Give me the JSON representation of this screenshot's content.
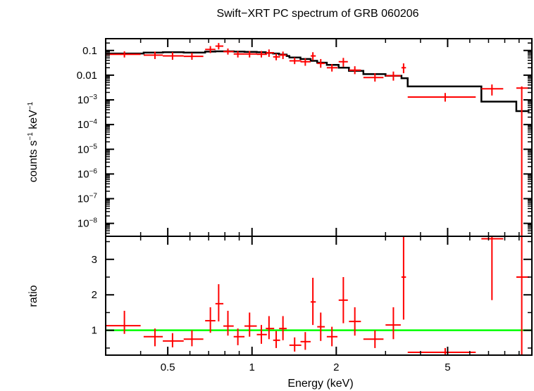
{
  "chart_data": {
    "type": "scatter",
    "title": "Swift−XRT PC spectrum of GRB 060206",
    "xlabel": "Energy (keV)",
    "xscale": "log",
    "xlim": [
      0.3,
      10
    ],
    "x_ticks": [
      {
        "value": 0.5,
        "label": "0.5"
      },
      {
        "value": 1,
        "label": "1"
      },
      {
        "value": 2,
        "label": "2"
      },
      {
        "value": 5,
        "label": "5"
      }
    ],
    "panels": [
      {
        "name": "spectrum",
        "ylabel": {
          "base": "counts s",
          "exp1": "−1",
          "mid": " keV",
          "exp2": "−1"
        },
        "yscale": "log",
        "ylim": [
          3e-09,
          0.3
        ],
        "y_ticks": [
          {
            "value": 0.1,
            "label": "0.1"
          },
          {
            "value": 0.01,
            "label": "0.01"
          },
          {
            "value": 0.001,
            "base": "10",
            "exp": "−3"
          },
          {
            "value": 0.0001,
            "base": "10",
            "exp": "−4"
          },
          {
            "value": 1e-05,
            "base": "10",
            "exp": "−5"
          },
          {
            "value": 1e-06,
            "base": "10",
            "exp": "−6"
          },
          {
            "value": 1e-07,
            "base": "10",
            "exp": "−7"
          },
          {
            "value": 1e-08,
            "base": "10",
            "exp": "−8"
          }
        ],
        "series": [
          {
            "name": "data",
            "color": "#ff0000",
            "points": [
              {
                "x": 0.35,
                "xlo": 0.3,
                "xhi": 0.4,
                "y": 0.07,
                "ylo": 0.052,
                "yhi": 0.092
              },
              {
                "x": 0.45,
                "xlo": 0.41,
                "xhi": 0.48,
                "y": 0.065,
                "ylo": 0.045,
                "yhi": 0.09
              },
              {
                "x": 0.52,
                "xlo": 0.48,
                "xhi": 0.57,
                "y": 0.06,
                "ylo": 0.042,
                "yhi": 0.085
              },
              {
                "x": 0.61,
                "xlo": 0.57,
                "xhi": 0.67,
                "y": 0.058,
                "ylo": 0.042,
                "yhi": 0.08
              },
              {
                "x": 0.71,
                "xlo": 0.68,
                "xhi": 0.74,
                "y": 0.11,
                "ylo": 0.078,
                "yhi": 0.15
              },
              {
                "x": 0.76,
                "xlo": 0.74,
                "xhi": 0.79,
                "y": 0.15,
                "ylo": 0.11,
                "yhi": 0.2
              },
              {
                "x": 0.82,
                "xlo": 0.79,
                "xhi": 0.86,
                "y": 0.09,
                "ylo": 0.068,
                "yhi": 0.12
              },
              {
                "x": 0.89,
                "xlo": 0.86,
                "xhi": 0.94,
                "y": 0.072,
                "ylo": 0.052,
                "yhi": 0.095
              },
              {
                "x": 0.98,
                "xlo": 0.94,
                "xhi": 1.04,
                "y": 0.072,
                "ylo": 0.052,
                "yhi": 0.095
              },
              {
                "x": 1.08,
                "xlo": 1.04,
                "xhi": 1.13,
                "y": 0.07,
                "ylo": 0.052,
                "yhi": 0.095
              },
              {
                "x": 1.15,
                "xlo": 1.12,
                "xhi": 1.2,
                "y": 0.08,
                "ylo": 0.055,
                "yhi": 0.11
              },
              {
                "x": 1.22,
                "xlo": 1.19,
                "xhi": 1.26,
                "y": 0.055,
                "ylo": 0.04,
                "yhi": 0.075
              },
              {
                "x": 1.29,
                "xlo": 1.25,
                "xhi": 1.33,
                "y": 0.065,
                "ylo": 0.045,
                "yhi": 0.09
              },
              {
                "x": 1.42,
                "xlo": 1.36,
                "xhi": 1.5,
                "y": 0.038,
                "ylo": 0.028,
                "yhi": 0.052
              },
              {
                "x": 1.55,
                "xlo": 1.49,
                "xhi": 1.62,
                "y": 0.035,
                "ylo": 0.024,
                "yhi": 0.048
              },
              {
                "x": 1.65,
                "xlo": 1.62,
                "xhi": 1.69,
                "y": 0.06,
                "ylo": 0.04,
                "yhi": 0.085
              },
              {
                "x": 1.76,
                "xlo": 1.71,
                "xhi": 1.82,
                "y": 0.03,
                "ylo": 0.02,
                "yhi": 0.045
              },
              {
                "x": 1.93,
                "xlo": 1.85,
                "xhi": 2.02,
                "y": 0.02,
                "ylo": 0.014,
                "yhi": 0.028
              },
              {
                "x": 2.12,
                "xlo": 2.04,
                "xhi": 2.2,
                "y": 0.035,
                "ylo": 0.022,
                "yhi": 0.05
              },
              {
                "x": 2.33,
                "xlo": 2.22,
                "xhi": 2.45,
                "y": 0.016,
                "ylo": 0.011,
                "yhi": 0.023
              },
              {
                "x": 2.75,
                "xlo": 2.5,
                "xhi": 2.95,
                "y": 0.008,
                "ylo": 0.0055,
                "yhi": 0.012
              },
              {
                "x": 3.2,
                "xlo": 3.0,
                "xhi": 3.4,
                "y": 0.0095,
                "ylo": 0.006,
                "yhi": 0.014
              },
              {
                "x": 3.48,
                "xlo": 3.42,
                "xhi": 3.55,
                "y": 0.02,
                "ylo": 0.012,
                "yhi": 0.03
              },
              {
                "x": 4.9,
                "xlo": 3.6,
                "xhi": 6.3,
                "y": 0.0013,
                "ylo": 0.00085,
                "yhi": 0.0019
              },
              {
                "x": 7.2,
                "xlo": 6.6,
                "xhi": 7.9,
                "y": 0.0028,
                "ylo": 0.0015,
                "yhi": 0.0042
              },
              {
                "x": 9.2,
                "xlo": 8.8,
                "xhi": 9.8,
                "y": 0.003,
                "ylo": 3e-09,
                "yhi": 0.0035
              }
            ]
          },
          {
            "name": "model",
            "color": "#000000",
            "step_edges": [
              0.3,
              0.41,
              0.48,
              0.57,
              0.68,
              0.74,
              0.79,
              0.86,
              0.94,
              1.04,
              1.12,
              1.19,
              1.25,
              1.33,
              1.36,
              1.49,
              1.62,
              1.71,
              1.85,
              2.04,
              2.22,
              2.5,
              3.0,
              3.42,
              3.6,
              6.6,
              8.8,
              9.8
            ],
            "step_values": [
              0.075,
              0.082,
              0.085,
              0.082,
              0.09,
              0.092,
              0.092,
              0.09,
              0.088,
              0.085,
              0.08,
              0.075,
              0.068,
              0.06,
              0.052,
              0.045,
              0.038,
              0.032,
              0.026,
              0.02,
              0.015,
              0.011,
              0.0095,
              0.0075,
              0.0035,
              0.00085,
              0.00035
            ]
          }
        ]
      },
      {
        "name": "ratio",
        "ylabel": "ratio",
        "yscale": "linear",
        "ylim": [
          0.3,
          3.65
        ],
        "y_ticks": [
          {
            "value": 1,
            "label": "1"
          },
          {
            "value": 2,
            "label": "2"
          },
          {
            "value": 3,
            "label": "3"
          }
        ],
        "reference_line": {
          "y": 1,
          "color": "#00ff00"
        },
        "series": [
          {
            "name": "ratio",
            "color": "#ff0000",
            "points": [
              {
                "x": 0.35,
                "xlo": 0.3,
                "xhi": 0.4,
                "y": 1.13,
                "ylo": 0.9,
                "yhi": 1.55
              },
              {
                "x": 0.45,
                "xlo": 0.41,
                "xhi": 0.48,
                "y": 0.82,
                "ylo": 0.55,
                "yhi": 1.05
              },
              {
                "x": 0.52,
                "xlo": 0.48,
                "xhi": 0.57,
                "y": 0.7,
                "ylo": 0.52,
                "yhi": 0.92
              },
              {
                "x": 0.61,
                "xlo": 0.57,
                "xhi": 0.67,
                "y": 0.75,
                "ylo": 0.55,
                "yhi": 1.0
              },
              {
                "x": 0.71,
                "xlo": 0.68,
                "xhi": 0.74,
                "y": 1.27,
                "ylo": 0.93,
                "yhi": 1.65
              },
              {
                "x": 0.76,
                "xlo": 0.74,
                "xhi": 0.79,
                "y": 1.75,
                "ylo": 1.25,
                "yhi": 2.3
              },
              {
                "x": 0.82,
                "xlo": 0.79,
                "xhi": 0.86,
                "y": 1.12,
                "ylo": 0.85,
                "yhi": 1.55
              },
              {
                "x": 0.89,
                "xlo": 0.86,
                "xhi": 0.94,
                "y": 0.82,
                "ylo": 0.58,
                "yhi": 1.05
              },
              {
                "x": 0.98,
                "xlo": 0.94,
                "xhi": 1.04,
                "y": 1.12,
                "ylo": 0.82,
                "yhi": 1.5
              },
              {
                "x": 1.08,
                "xlo": 1.04,
                "xhi": 1.13,
                "y": 0.88,
                "ylo": 0.62,
                "yhi": 1.15
              },
              {
                "x": 1.15,
                "xlo": 1.12,
                "xhi": 1.2,
                "y": 1.05,
                "ylo": 0.75,
                "yhi": 1.4
              },
              {
                "x": 1.22,
                "xlo": 1.19,
                "xhi": 1.26,
                "y": 0.72,
                "ylo": 0.5,
                "yhi": 0.98
              },
              {
                "x": 1.29,
                "xlo": 1.25,
                "xhi": 1.33,
                "y": 1.05,
                "ylo": 0.72,
                "yhi": 1.4
              },
              {
                "x": 1.42,
                "xlo": 1.36,
                "xhi": 1.5,
                "y": 0.58,
                "ylo": 0.4,
                "yhi": 0.8
              },
              {
                "x": 1.55,
                "xlo": 1.49,
                "xhi": 1.62,
                "y": 0.68,
                "ylo": 0.45,
                "yhi": 0.95
              },
              {
                "x": 1.65,
                "xlo": 1.62,
                "xhi": 1.69,
                "y": 1.8,
                "ylo": 1.15,
                "yhi": 2.48
              },
              {
                "x": 1.76,
                "xlo": 1.71,
                "xhi": 1.82,
                "y": 1.1,
                "ylo": 0.7,
                "yhi": 1.5
              },
              {
                "x": 1.93,
                "xlo": 1.85,
                "xhi": 2.02,
                "y": 0.82,
                "ylo": 0.55,
                "yhi": 1.1
              },
              {
                "x": 2.12,
                "xlo": 2.04,
                "xhi": 2.2,
                "y": 1.85,
                "ylo": 1.2,
                "yhi": 2.5
              },
              {
                "x": 2.33,
                "xlo": 2.22,
                "xhi": 2.45,
                "y": 1.25,
                "ylo": 0.85,
                "yhi": 1.65
              },
              {
                "x": 2.75,
                "xlo": 2.5,
                "xhi": 2.95,
                "y": 0.75,
                "ylo": 0.5,
                "yhi": 1.0
              },
              {
                "x": 3.2,
                "xlo": 3.0,
                "xhi": 3.4,
                "y": 1.15,
                "ylo": 0.75,
                "yhi": 1.65
              },
              {
                "x": 3.48,
                "xlo": 3.42,
                "xhi": 3.55,
                "y": 2.5,
                "ylo": 1.3,
                "yhi": 3.65
              },
              {
                "x": 4.9,
                "xlo": 3.6,
                "xhi": 6.3,
                "y": 0.38,
                "ylo": 0.3,
                "yhi": 0.5
              },
              {
                "x": 7.2,
                "xlo": 6.6,
                "xhi": 7.9,
                "y": 3.58,
                "ylo": 1.85,
                "yhi": 3.65
              },
              {
                "x": 9.2,
                "xlo": 8.8,
                "xhi": 9.8,
                "y": 2.5,
                "ylo": 0.3,
                "yhi": 3.65
              }
            ]
          }
        ]
      }
    ]
  }
}
